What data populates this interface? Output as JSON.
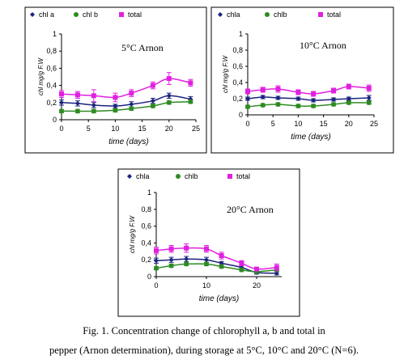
{
  "chart_data": [
    {
      "type": "line",
      "title": "5°C Arnon",
      "xlabel": "time (days)",
      "ylabel": "chl mg/g F.W",
      "xlim": [
        0,
        25
      ],
      "ylim": [
        0,
        1
      ],
      "x_ticks": [
        "0",
        "5",
        "10",
        "15",
        "20",
        "25"
      ],
      "y_ticks": [
        "0",
        "0,2",
        "0,4",
        "0,6",
        "0,8",
        "1"
      ],
      "legend_position": "top",
      "x": [
        0,
        3,
        6,
        10,
        13,
        17,
        20,
        24
      ],
      "series": [
        {
          "name": "chl a",
          "color": "#1a237e",
          "marker": "diamond",
          "values": [
            0.2,
            0.19,
            0.17,
            0.16,
            0.18,
            0.22,
            0.28,
            0.24
          ],
          "errors": [
            0.03,
            0.03,
            0.03,
            0.02,
            0.03,
            0.03,
            0.03,
            0.03
          ]
        },
        {
          "name": "chl b",
          "color": "#2e8b22",
          "marker": "circle",
          "values": [
            0.1,
            0.1,
            0.1,
            0.11,
            0.13,
            0.16,
            0.2,
            0.21
          ],
          "errors": [
            0.02,
            0.02,
            0.02,
            0.02,
            0.02,
            0.02,
            0.02,
            0.02
          ]
        },
        {
          "name": "total",
          "color": "#e020e0",
          "marker": "square",
          "values": [
            0.3,
            0.29,
            0.28,
            0.26,
            0.31,
            0.4,
            0.48,
            0.43
          ],
          "errors": [
            0.04,
            0.04,
            0.07,
            0.05,
            0.04,
            0.04,
            0.07,
            0.04
          ]
        }
      ]
    },
    {
      "type": "line",
      "title": "10°C Arnon",
      "xlabel": "time (days)",
      "ylabel": "chl mg/g F.W",
      "xlim": [
        0,
        25
      ],
      "ylim": [
        0,
        1
      ],
      "x_ticks": [
        "0",
        "5",
        "10",
        "15",
        "20",
        "25"
      ],
      "y_ticks": [
        "0",
        "0,2",
        "0,4",
        "0,6",
        "0,8",
        "1"
      ],
      "legend_position": "top",
      "x": [
        0,
        3,
        6,
        10,
        13,
        17,
        20,
        24
      ],
      "series": [
        {
          "name": "chla",
          "color": "#1a237e",
          "marker": "diamond",
          "values": [
            0.2,
            0.22,
            0.21,
            0.2,
            0.18,
            0.19,
            0.2,
            0.21
          ],
          "errors": [
            0.02,
            0.02,
            0.02,
            0.02,
            0.02,
            0.02,
            0.02,
            0.03
          ]
        },
        {
          "name": "chlb",
          "color": "#2e8b22",
          "marker": "circle",
          "values": [
            0.1,
            0.12,
            0.13,
            0.11,
            0.11,
            0.13,
            0.15,
            0.15
          ],
          "errors": [
            0.02,
            0.02,
            0.02,
            0.02,
            0.02,
            0.02,
            0.02,
            0.02
          ]
        },
        {
          "name": "total",
          "color": "#e020e0",
          "marker": "square",
          "values": [
            0.29,
            0.31,
            0.32,
            0.28,
            0.26,
            0.3,
            0.35,
            0.33
          ],
          "errors": [
            0.03,
            0.03,
            0.04,
            0.03,
            0.03,
            0.03,
            0.03,
            0.04
          ]
        }
      ]
    },
    {
      "type": "line",
      "title": "20°C Arnon",
      "xlabel": "time (days)",
      "ylabel": "chl mg/g F.W",
      "xlim": [
        0,
        25
      ],
      "ylim": [
        0,
        1
      ],
      "x_ticks": [
        "0",
        "10",
        "20"
      ],
      "y_ticks": [
        "0",
        "0,2",
        "0,4",
        "0,6",
        "0,8",
        "1"
      ],
      "legend_position": "top",
      "x": [
        0,
        3,
        6,
        10,
        13,
        17,
        20,
        24
      ],
      "series": [
        {
          "name": "chla",
          "color": "#1a237e",
          "marker": "diamond",
          "values": [
            0.19,
            0.2,
            0.21,
            0.2,
            0.16,
            0.11,
            0.05,
            0.04
          ],
          "errors": [
            0.03,
            0.03,
            0.03,
            0.03,
            0.02,
            0.02,
            0.02,
            0.02
          ]
        },
        {
          "name": "chlb",
          "color": "#2e8b22",
          "marker": "circle",
          "values": [
            0.1,
            0.13,
            0.15,
            0.15,
            0.12,
            0.08,
            0.06,
            0.08
          ],
          "errors": [
            0.02,
            0.02,
            0.02,
            0.02,
            0.02,
            0.02,
            0.02,
            0.02
          ]
        },
        {
          "name": "total",
          "color": "#e020e0",
          "marker": "square",
          "values": [
            0.31,
            0.33,
            0.34,
            0.33,
            0.25,
            0.16,
            0.09,
            0.11
          ],
          "errors": [
            0.04,
            0.04,
            0.05,
            0.04,
            0.04,
            0.03,
            0.02,
            0.04
          ]
        }
      ]
    }
  ],
  "caption": {
    "line1": "Fig. 1. Concentration change of chlorophyll a, b and total in",
    "line2": "pepper (Arnon determination), during storage at 5°C, 10°C and 20°C (N=6)."
  }
}
